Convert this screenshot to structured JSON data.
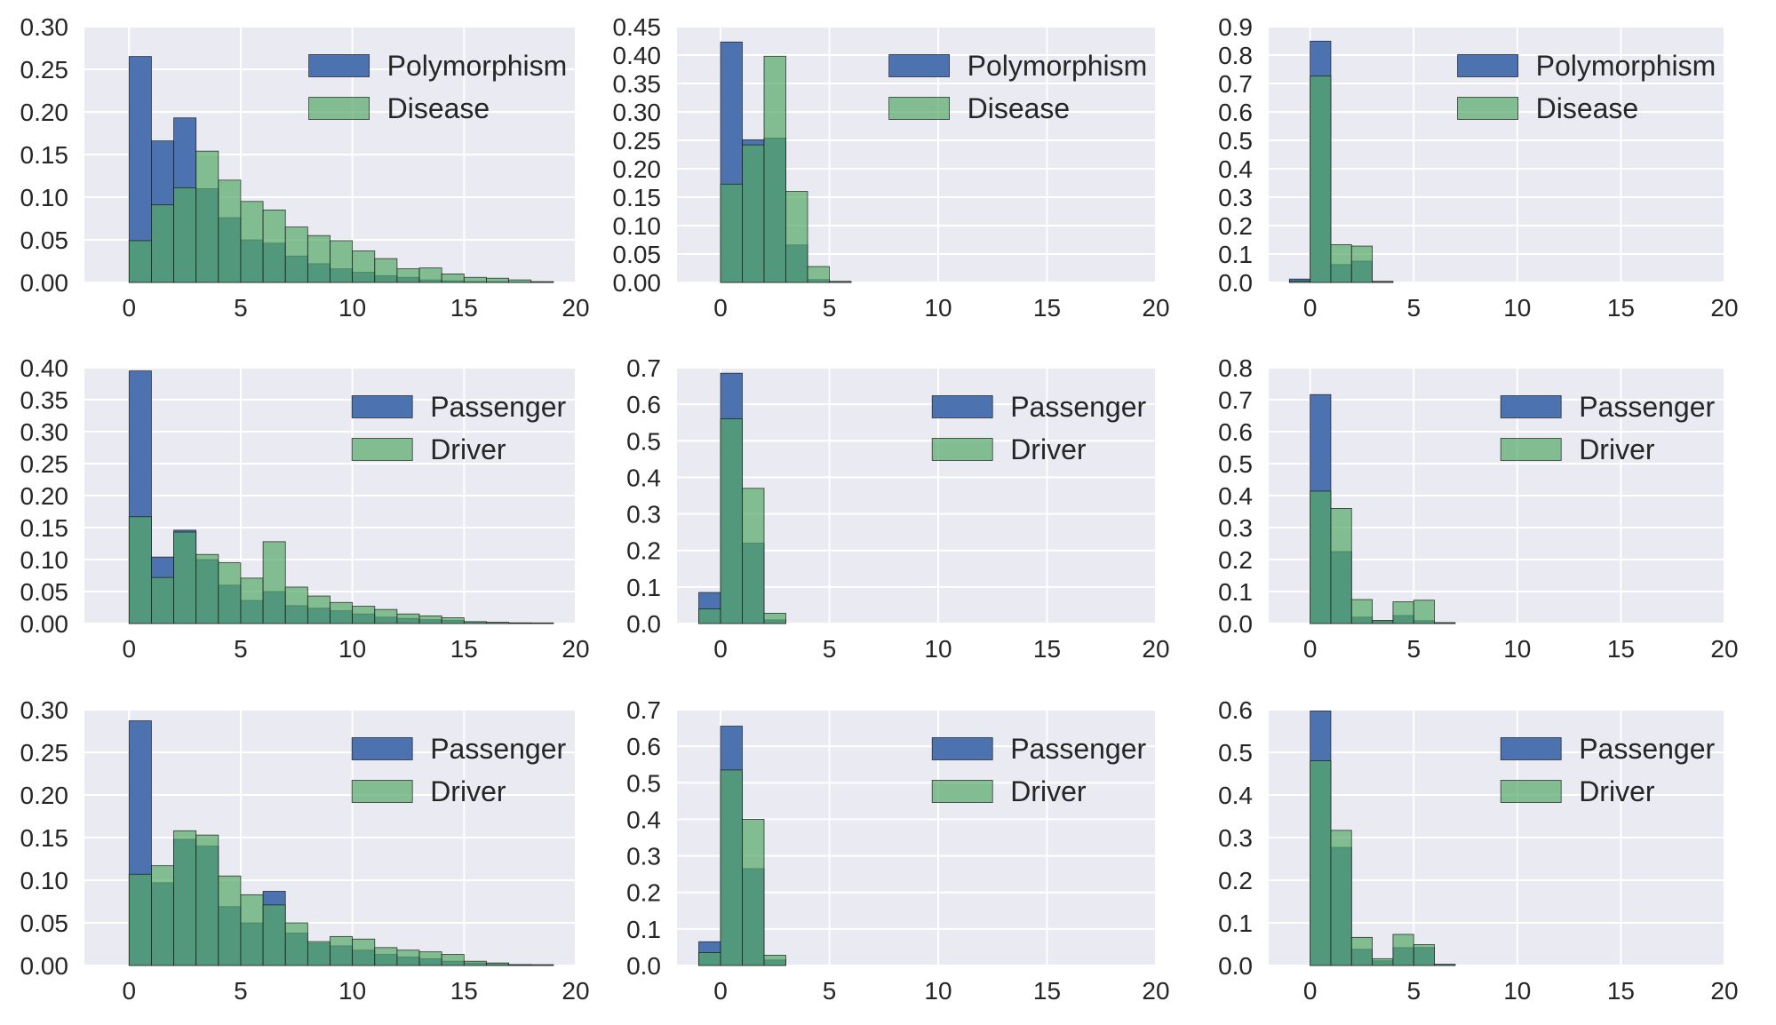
{
  "colors": {
    "background": "#eaeaf2",
    "grid": "#ffffff",
    "blue": "#4c72b0",
    "green": "#55a868",
    "edge": "#1a1a1a",
    "text": "#262626"
  },
  "chart_data": [
    {
      "type": "bar",
      "panel": "row1-col1",
      "xlim": [
        -2,
        20
      ],
      "ylim": [
        0,
        0.3
      ],
      "xticks": [
        0,
        5,
        10,
        15,
        20
      ],
      "yticks": [
        0.0,
        0.05,
        0.1,
        0.15,
        0.2,
        0.25,
        0.3
      ],
      "ytick_labels": [
        "0.00",
        "0.05",
        "0.10",
        "0.15",
        "0.20",
        "0.25",
        "0.30"
      ],
      "legend_position": "top-right",
      "bin_start": 0,
      "bin_width": 1,
      "series": [
        {
          "name": "Polymorphism",
          "color": "blue",
          "alpha": 1.0,
          "values": [
            0.265,
            0.166,
            0.193,
            0.11,
            0.076,
            0.05,
            0.046,
            0.031,
            0.022,
            0.016,
            0.012,
            0.008,
            0.006,
            0.003,
            0.002,
            0.001,
            0.001,
            0.0005,
            0.0005
          ]
        },
        {
          "name": "Disease",
          "color": "green",
          "alpha": 0.7,
          "values": [
            0.049,
            0.091,
            0.111,
            0.154,
            0.12,
            0.095,
            0.085,
            0.065,
            0.055,
            0.049,
            0.037,
            0.028,
            0.016,
            0.017,
            0.01,
            0.006,
            0.005,
            0.003,
            0.001
          ]
        }
      ]
    },
    {
      "type": "bar",
      "panel": "row1-col2",
      "xlim": [
        -2,
        20
      ],
      "ylim": [
        0,
        0.45
      ],
      "xticks": [
        0,
        5,
        10,
        15,
        20
      ],
      "yticks": [
        0.0,
        0.05,
        0.1,
        0.15,
        0.2,
        0.25,
        0.3,
        0.35,
        0.4,
        0.45
      ],
      "ytick_labels": [
        "0.00",
        "0.05",
        "0.10",
        "0.15",
        "0.20",
        "0.25",
        "0.30",
        "0.35",
        "0.40",
        "0.45"
      ],
      "legend_position": "top-right",
      "bin_start": 0,
      "bin_width": 1,
      "series": [
        {
          "name": "Polymorphism",
          "color": "blue",
          "alpha": 1.0,
          "values": [
            0.423,
            0.251,
            0.254,
            0.066,
            0.005,
            0.001
          ]
        },
        {
          "name": "Disease",
          "color": "green",
          "alpha": 0.7,
          "values": [
            0.173,
            0.242,
            0.398,
            0.16,
            0.028,
            0.002
          ]
        }
      ]
    },
    {
      "type": "bar",
      "panel": "row1-col3",
      "xlim": [
        -2,
        20
      ],
      "ylim": [
        0,
        0.9
      ],
      "xticks": [
        0,
        5,
        10,
        15,
        20
      ],
      "yticks": [
        0.0,
        0.1,
        0.2,
        0.3,
        0.4,
        0.5,
        0.6,
        0.7,
        0.8,
        0.9
      ],
      "ytick_labels": [
        "0.0",
        "0.1",
        "0.2",
        "0.3",
        "0.4",
        "0.5",
        "0.6",
        "0.7",
        "0.8",
        "0.9"
      ],
      "legend_position": "top-right",
      "bin_start": -1,
      "bin_width": 1,
      "series": [
        {
          "name": "Polymorphism",
          "color": "blue",
          "alpha": 1.0,
          "values": [
            0.012,
            0.849,
            0.063,
            0.075,
            0.003
          ]
        },
        {
          "name": "Disease",
          "color": "green",
          "alpha": 0.7,
          "values": [
            0.005,
            0.726,
            0.133,
            0.128,
            0.004
          ]
        }
      ]
    },
    {
      "type": "bar",
      "panel": "row2-col1",
      "xlim": [
        -2,
        20
      ],
      "ylim": [
        0,
        0.4
      ],
      "xticks": [
        0,
        5,
        10,
        15,
        20
      ],
      "yticks": [
        0.0,
        0.05,
        0.1,
        0.15,
        0.2,
        0.25,
        0.3,
        0.35,
        0.4
      ],
      "ytick_labels": [
        "0.00",
        "0.05",
        "0.10",
        "0.15",
        "0.20",
        "0.25",
        "0.30",
        "0.35",
        "0.40"
      ],
      "legend_position": "top-right",
      "bin_start": 0,
      "bin_width": 1,
      "series": [
        {
          "name": "Passenger",
          "color": "blue",
          "alpha": 1.0,
          "values": [
            0.395,
            0.104,
            0.146,
            0.1,
            0.06,
            0.036,
            0.05,
            0.028,
            0.024,
            0.02,
            0.015,
            0.01,
            0.008,
            0.006,
            0.005,
            0.002,
            0.001,
            0.001,
            0.0005
          ]
        },
        {
          "name": "Driver",
          "color": "green",
          "alpha": 0.7,
          "values": [
            0.167,
            0.072,
            0.143,
            0.108,
            0.095,
            0.071,
            0.128,
            0.057,
            0.043,
            0.033,
            0.027,
            0.022,
            0.015,
            0.012,
            0.009,
            0.003,
            0.002,
            0.001,
            0.001
          ]
        }
      ]
    },
    {
      "type": "bar",
      "panel": "row2-col2",
      "xlim": [
        -2,
        20
      ],
      "ylim": [
        0,
        0.7
      ],
      "xticks": [
        0,
        5,
        10,
        15,
        20
      ],
      "yticks": [
        0.0,
        0.1,
        0.2,
        0.3,
        0.4,
        0.5,
        0.6,
        0.7
      ],
      "ytick_labels": [
        "0.0",
        "0.1",
        "0.2",
        "0.3",
        "0.4",
        "0.5",
        "0.6",
        "0.7"
      ],
      "legend_position": "top-right",
      "bin_start": -1,
      "bin_width": 1,
      "series": [
        {
          "name": "Passenger",
          "color": "blue",
          "alpha": 1.0,
          "values": [
            0.085,
            0.685,
            0.22,
            0.01
          ]
        },
        {
          "name": "Driver",
          "color": "green",
          "alpha": 0.7,
          "values": [
            0.04,
            0.56,
            0.37,
            0.028
          ]
        }
      ]
    },
    {
      "type": "bar",
      "panel": "row2-col3",
      "xlim": [
        -2,
        20
      ],
      "ylim": [
        0,
        0.8
      ],
      "xticks": [
        0,
        5,
        10,
        15,
        20
      ],
      "yticks": [
        0.0,
        0.1,
        0.2,
        0.3,
        0.4,
        0.5,
        0.6,
        0.7,
        0.8
      ],
      "ytick_labels": [
        "0.0",
        "0.1",
        "0.2",
        "0.3",
        "0.4",
        "0.5",
        "0.6",
        "0.7",
        "0.8"
      ],
      "legend_position": "top-right",
      "bin_start": 0,
      "bin_width": 1,
      "series": [
        {
          "name": "Passenger",
          "color": "blue",
          "alpha": 1.0,
          "values": [
            0.716,
            0.225,
            0.02,
            0.008,
            0.025,
            0.009,
            0.002
          ]
        },
        {
          "name": "Driver",
          "color": "green",
          "alpha": 0.7,
          "values": [
            0.414,
            0.36,
            0.075,
            0.01,
            0.068,
            0.073,
            0.003
          ]
        }
      ]
    },
    {
      "type": "bar",
      "panel": "row3-col1",
      "xlim": [
        -2,
        20
      ],
      "ylim": [
        0,
        0.3
      ],
      "xticks": [
        0,
        5,
        10,
        15,
        20
      ],
      "yticks": [
        0.0,
        0.05,
        0.1,
        0.15,
        0.2,
        0.25,
        0.3
      ],
      "ytick_labels": [
        "0.00",
        "0.05",
        "0.10",
        "0.15",
        "0.20",
        "0.25",
        "0.30"
      ],
      "legend_position": "top-right",
      "bin_start": 0,
      "bin_width": 1,
      "series": [
        {
          "name": "Passenger",
          "color": "blue",
          "alpha": 1.0,
          "values": [
            0.287,
            0.097,
            0.148,
            0.14,
            0.069,
            0.05,
            0.087,
            0.038,
            0.026,
            0.023,
            0.018,
            0.013,
            0.01,
            0.008,
            0.005,
            0.003,
            0.002,
            0.001,
            0.0005
          ]
        },
        {
          "name": "Driver",
          "color": "green",
          "alpha": 0.7,
          "values": [
            0.107,
            0.117,
            0.158,
            0.153,
            0.105,
            0.083,
            0.071,
            0.05,
            0.028,
            0.034,
            0.031,
            0.021,
            0.018,
            0.016,
            0.013,
            0.005,
            0.003,
            0.001,
            0.001
          ]
        }
      ]
    },
    {
      "type": "bar",
      "panel": "row3-col2",
      "xlim": [
        -2,
        20
      ],
      "ylim": [
        0,
        0.7
      ],
      "xticks": [
        0,
        5,
        10,
        15,
        20
      ],
      "yticks": [
        0.0,
        0.1,
        0.2,
        0.3,
        0.4,
        0.5,
        0.6,
        0.7
      ],
      "ytick_labels": [
        "0.0",
        "0.1",
        "0.2",
        "0.3",
        "0.4",
        "0.5",
        "0.6",
        "0.7"
      ],
      "legend_position": "top-right",
      "bin_start": -1,
      "bin_width": 1,
      "series": [
        {
          "name": "Passenger",
          "color": "blue",
          "alpha": 1.0,
          "values": [
            0.065,
            0.655,
            0.265,
            0.015
          ]
        },
        {
          "name": "Driver",
          "color": "green",
          "alpha": 0.7,
          "values": [
            0.035,
            0.535,
            0.4,
            0.028
          ]
        }
      ]
    },
    {
      "type": "bar",
      "panel": "row3-col3",
      "xlim": [
        -2,
        20
      ],
      "ylim": [
        0,
        0.6
      ],
      "xticks": [
        0,
        5,
        10,
        15,
        20
      ],
      "yticks": [
        0.0,
        0.1,
        0.2,
        0.3,
        0.4,
        0.5,
        0.6
      ],
      "ytick_labels": [
        "0.0",
        "0.1",
        "0.2",
        "0.3",
        "0.4",
        "0.5",
        "0.6"
      ],
      "legend_position": "top-right",
      "bin_start": 0,
      "bin_width": 1,
      "series": [
        {
          "name": "Passenger",
          "color": "blue",
          "alpha": 1.0,
          "values": [
            0.597,
            0.277,
            0.038,
            0.011,
            0.042,
            0.042,
            0.002
          ]
        },
        {
          "name": "Driver",
          "color": "green",
          "alpha": 0.7,
          "values": [
            0.48,
            0.317,
            0.066,
            0.016,
            0.073,
            0.049,
            0.003
          ]
        }
      ]
    }
  ]
}
